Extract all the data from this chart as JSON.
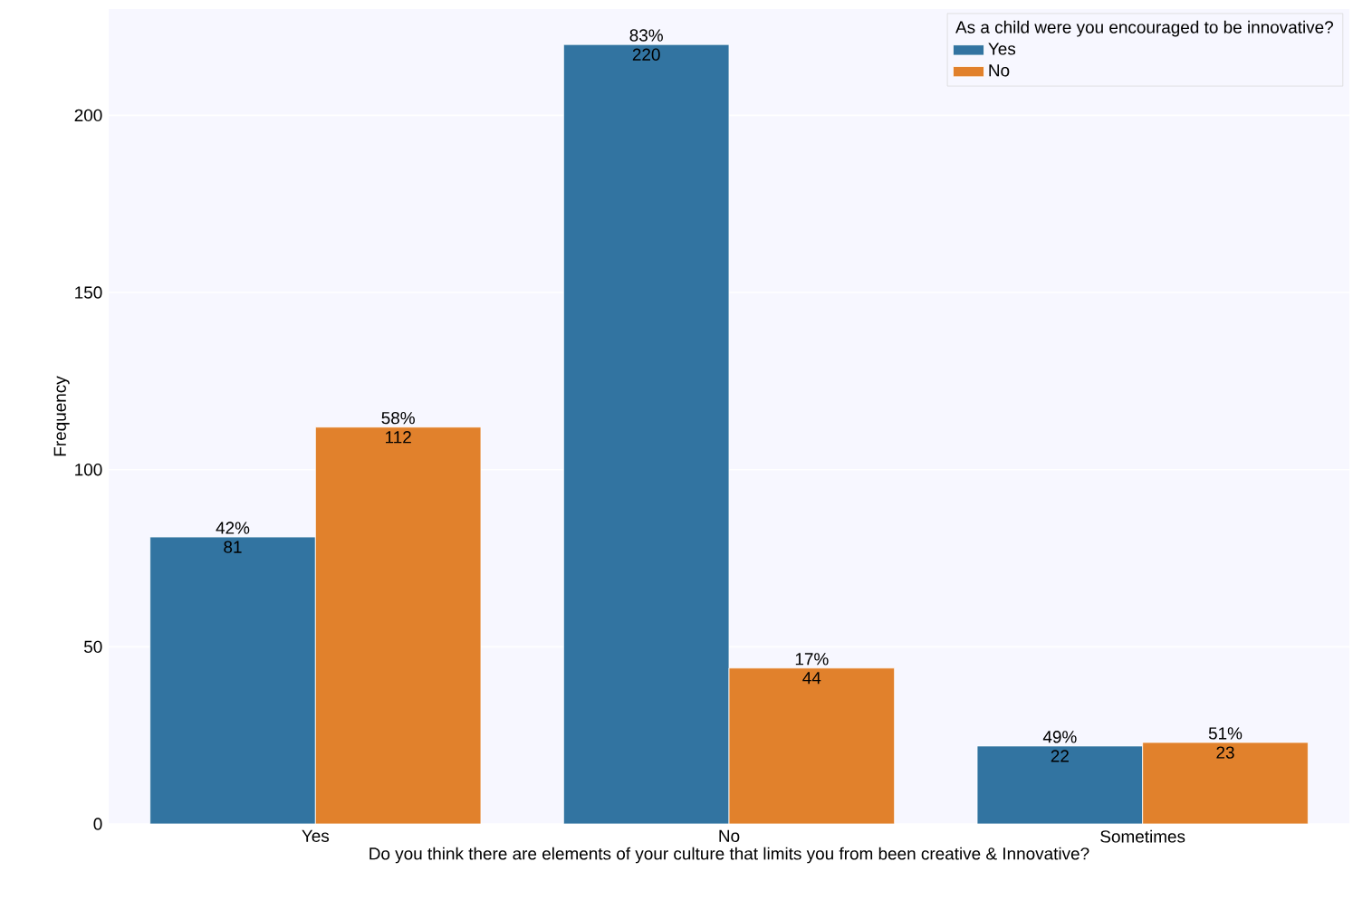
{
  "chart_data": {
    "type": "bar",
    "xlabel": "Do you think there are elements of your culture that limits you from been creative & Innovative?",
    "ylabel": "Frequency",
    "legend_title": "As a child were you encouraged to be innovative?",
    "categories": [
      "Yes",
      "No",
      "Sometimes"
    ],
    "series": [
      {
        "name": "Yes",
        "color": "#3274a1",
        "values": [
          81,
          220,
          22
        ]
      },
      {
        "name": "No",
        "color": "#e1812c",
        "values": [
          112,
          44,
          23
        ]
      }
    ],
    "ylim": [
      0,
      230
    ],
    "yticks": [
      0,
      50,
      100,
      150,
      200
    ],
    "grid": "y",
    "legend": "top right",
    "data_labels": true,
    "annotations": [
      "42%",
      "58%",
      "83%",
      "17%",
      "49%",
      "51%"
    ]
  }
}
